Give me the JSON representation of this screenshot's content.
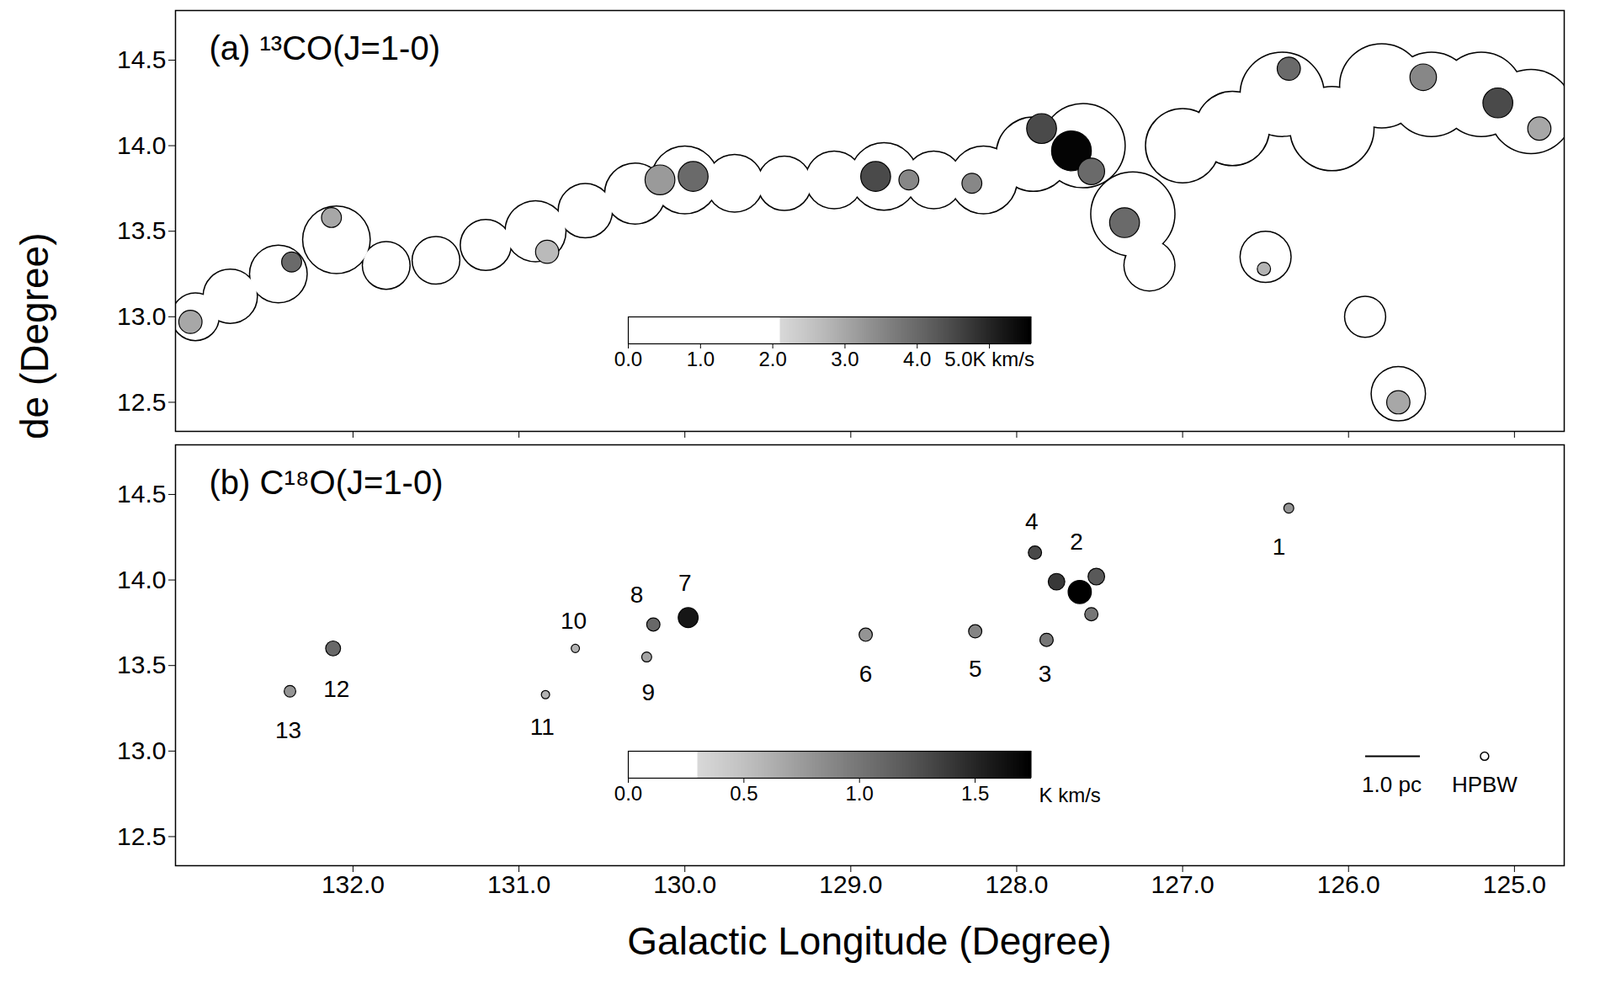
{
  "chart_data": [
    {
      "type": "map",
      "title": "(a) ¹³CO(J=1-0)",
      "ylabel": "Galactic Latitude (Degree)",
      "xlim": [
        133.07,
        124.7
      ],
      "ylim": [
        12.33,
        14.79
      ],
      "xticks": [
        {
          "value": 125,
          "label": "125.0"
        },
        {
          "value": 126,
          "label": "126.0"
        },
        {
          "value": 127,
          "label": "127.0"
        },
        {
          "value": 128,
          "label": "128.0"
        },
        {
          "value": 129,
          "label": "129.0"
        },
        {
          "value": 130,
          "label": "130.0"
        },
        {
          "value": 131,
          "label": "131.0"
        },
        {
          "value": 132,
          "label": "132.0"
        }
      ],
      "yticks": [
        12.5,
        {
          "value": 13,
          "label": "13.0"
        },
        13.5,
        {
          "value": 14,
          "label": "14.0"
        },
        14.5
      ],
      "tick_labels": "y",
      "colorbar": {
        "range": [
          0,
          5.57
        ],
        "white_below": 2.1,
        "ticks": [
          {
            "value": 0,
            "label": "0.0"
          },
          {
            "value": 1,
            "label": "1.0"
          },
          {
            "value": 2,
            "label": "2.0"
          },
          {
            "value": 3,
            "label": "3.0"
          },
          {
            "value": 4,
            "label": "4.0"
          },
          {
            "value": 5,
            "label": "5.0K km/s"
          }
        ]
      },
      "contour_regions": [
        {
          "x": 132.95,
          "y": 13.0,
          "value": 1.5,
          "size": 0.14
        },
        {
          "x": 132.74,
          "y": 13.12,
          "value": 1.5,
          "size": 0.16
        },
        {
          "x": 132.45,
          "y": 13.25,
          "value": 1.5,
          "size": 0.17
        },
        {
          "x": 132.1,
          "y": 13.45,
          "value": 1.5,
          "size": 0.2
        },
        {
          "x": 131.8,
          "y": 13.3,
          "value": 1.5,
          "size": 0.14
        },
        {
          "x": 131.5,
          "y": 13.33,
          "value": 1.5,
          "size": 0.14
        },
        {
          "x": 131.2,
          "y": 13.42,
          "value": 1.5,
          "size": 0.15
        },
        {
          "x": 130.9,
          "y": 13.5,
          "value": 1.5,
          "size": 0.18
        },
        {
          "x": 130.6,
          "y": 13.62,
          "value": 1.5,
          "size": 0.16
        },
        {
          "x": 130.3,
          "y": 13.72,
          "value": 1.5,
          "size": 0.18
        },
        {
          "x": 130.0,
          "y": 13.8,
          "value": 1.5,
          "size": 0.2
        },
        {
          "x": 129.7,
          "y": 13.78,
          "value": 1.5,
          "size": 0.17
        },
        {
          "x": 129.4,
          "y": 13.78,
          "value": 1.5,
          "size": 0.16
        },
        {
          "x": 129.1,
          "y": 13.8,
          "value": 1.5,
          "size": 0.17
        },
        {
          "x": 128.8,
          "y": 13.82,
          "value": 1.5,
          "size": 0.2
        },
        {
          "x": 128.5,
          "y": 13.8,
          "value": 1.5,
          "size": 0.17
        },
        {
          "x": 128.2,
          "y": 13.8,
          "value": 1.5,
          "size": 0.2
        },
        {
          "x": 127.9,
          "y": 13.95,
          "value": 1.5,
          "size": 0.22
        },
        {
          "x": 127.6,
          "y": 14.0,
          "value": 1.5,
          "size": 0.25
        },
        {
          "x": 127.3,
          "y": 13.6,
          "value": 1.5,
          "size": 0.25
        },
        {
          "x": 127.2,
          "y": 13.3,
          "value": 1.5,
          "size": 0.15
        },
        {
          "x": 127.0,
          "y": 14.0,
          "value": 1.5,
          "size": 0.22
        },
        {
          "x": 126.7,
          "y": 14.1,
          "value": 1.5,
          "size": 0.22
        },
        {
          "x": 126.4,
          "y": 14.3,
          "value": 1.5,
          "size": 0.25
        },
        {
          "x": 126.1,
          "y": 14.1,
          "value": 1.5,
          "size": 0.25
        },
        {
          "x": 125.8,
          "y": 14.35,
          "value": 1.5,
          "size": 0.25
        },
        {
          "x": 125.5,
          "y": 14.3,
          "value": 1.5,
          "size": 0.25
        },
        {
          "x": 125.2,
          "y": 14.3,
          "value": 1.5,
          "size": 0.25
        },
        {
          "x": 124.9,
          "y": 14.2,
          "value": 1.5,
          "size": 0.25
        },
        {
          "x": 126.5,
          "y": 13.35,
          "value": 1.5,
          "size": 0.15
        },
        {
          "x": 125.7,
          "y": 12.55,
          "value": 1.5,
          "size": 0.16
        },
        {
          "x": 125.9,
          "y": 13.0,
          "value": 1.5,
          "size": 0.12
        }
      ],
      "clumps": [
        {
          "x": 132.98,
          "y": 12.97,
          "value": 3.0,
          "size": 0.07
        },
        {
          "x": 132.37,
          "y": 13.32,
          "value": 4.0,
          "size": 0.06
        },
        {
          "x": 132.13,
          "y": 13.58,
          "value": 3.0,
          "size": 0.06
        },
        {
          "x": 130.83,
          "y": 13.38,
          "value": 2.7,
          "size": 0.07
        },
        {
          "x": 130.15,
          "y": 13.8,
          "value": 3.2,
          "size": 0.09
        },
        {
          "x": 129.95,
          "y": 13.82,
          "value": 4.0,
          "size": 0.09
        },
        {
          "x": 128.85,
          "y": 13.82,
          "value": 4.5,
          "size": 0.09
        },
        {
          "x": 128.65,
          "y": 13.8,
          "value": 3.5,
          "size": 0.06
        },
        {
          "x": 128.27,
          "y": 13.78,
          "value": 3.5,
          "size": 0.06
        },
        {
          "x": 127.85,
          "y": 14.1,
          "value": 4.5,
          "size": 0.09
        },
        {
          "x": 127.67,
          "y": 13.97,
          "value": 5.5,
          "size": 0.12
        },
        {
          "x": 127.55,
          "y": 13.85,
          "value": 4.0,
          "size": 0.08
        },
        {
          "x": 127.35,
          "y": 13.55,
          "value": 4.0,
          "size": 0.09
        },
        {
          "x": 126.51,
          "y": 13.28,
          "value": 2.8,
          "size": 0.04
        },
        {
          "x": 126.36,
          "y": 14.45,
          "value": 4.0,
          "size": 0.07
        },
        {
          "x": 125.55,
          "y": 14.4,
          "value": 3.5,
          "size": 0.08
        },
        {
          "x": 125.1,
          "y": 14.25,
          "value": 4.5,
          "size": 0.09
        },
        {
          "x": 124.85,
          "y": 14.1,
          "value": 3.0,
          "size": 0.07
        },
        {
          "x": 125.7,
          "y": 12.5,
          "value": 3.0,
          "size": 0.07
        }
      ]
    },
    {
      "type": "map",
      "title": "(b) C¹⁸O(J=1-0)",
      "xlabel": "Galactic Longitude (Degree)",
      "xlim": [
        133.07,
        124.7
      ],
      "ylim": [
        12.33,
        14.79
      ],
      "xticks": [
        {
          "value": 125,
          "label": "125.0"
        },
        {
          "value": 126,
          "label": "126.0"
        },
        {
          "value": 127,
          "label": "127.0"
        },
        {
          "value": 128,
          "label": "128.0"
        },
        {
          "value": 129,
          "label": "129.0"
        },
        {
          "value": 130,
          "label": "130.0"
        },
        {
          "value": 131,
          "label": "131.0"
        },
        {
          "value": 132,
          "label": "132.0"
        }
      ],
      "yticks": [
        12.5,
        {
          "value": 13,
          "label": "13.0"
        },
        13.5,
        {
          "value": 14,
          "label": "14.0"
        },
        14.5
      ],
      "colorbar": {
        "range": [
          0,
          1.74
        ],
        "white_below": 0.3,
        "label": "K km/s",
        "ticks": [
          {
            "value": 0,
            "label": "0.0"
          },
          0.5,
          {
            "value": 1,
            "label": "1.0"
          },
          1.5
        ]
      },
      "clumps": [
        {
          "x": 126.36,
          "y": 14.42,
          "value": 0.8,
          "size": 0.03,
          "label": "1",
          "label_x": 126.42,
          "label_y": 14.19
        },
        {
          "x": 127.62,
          "y": 13.93,
          "value": 1.8,
          "size": 0.07,
          "label": "2",
          "label_x": 127.64,
          "label_y": 14.22
        },
        {
          "x": 127.76,
          "y": 13.99,
          "value": 1.4,
          "size": 0.05
        },
        {
          "x": 127.52,
          "y": 14.02,
          "value": 1.2,
          "size": 0.05
        },
        {
          "x": 127.55,
          "y": 13.8,
          "value": 1.0,
          "size": 0.04
        },
        {
          "x": 127.82,
          "y": 13.65,
          "value": 1.0,
          "size": 0.04,
          "label": "3",
          "label_x": 127.83,
          "label_y": 13.45
        },
        {
          "x": 127.89,
          "y": 14.16,
          "value": 1.3,
          "size": 0.04,
          "label": "4",
          "label_x": 127.91,
          "label_y": 14.34
        },
        {
          "x": 128.25,
          "y": 13.7,
          "value": 0.9,
          "size": 0.04,
          "label": "5",
          "label_x": 128.25,
          "label_y": 13.48
        },
        {
          "x": 128.91,
          "y": 13.68,
          "value": 0.8,
          "size": 0.04,
          "label": "6",
          "label_x": 128.91,
          "label_y": 13.45
        },
        {
          "x": 129.98,
          "y": 13.78,
          "value": 1.6,
          "size": 0.06,
          "label": "7",
          "label_x": 130.0,
          "label_y": 13.98
        },
        {
          "x": 130.19,
          "y": 13.74,
          "value": 1.1,
          "size": 0.04,
          "label": "8",
          "label_x": 130.29,
          "label_y": 13.91
        },
        {
          "x": 130.23,
          "y": 13.55,
          "value": 0.7,
          "size": 0.03,
          "label": "9",
          "label_x": 130.22,
          "label_y": 13.34
        },
        {
          "x": 130.66,
          "y": 13.6,
          "value": 0.6,
          "size": 0.025,
          "label": "10",
          "label_x": 130.67,
          "label_y": 13.76
        },
        {
          "x": 130.84,
          "y": 13.33,
          "value": 0.6,
          "size": 0.025,
          "label": "11",
          "label_x": 130.86,
          "label_y": 13.14
        },
        {
          "x": 132.12,
          "y": 13.6,
          "value": 1.1,
          "size": 0.045,
          "label": "12",
          "label_x": 132.1,
          "label_y": 13.36
        },
        {
          "x": 132.38,
          "y": 13.35,
          "value": 0.8,
          "size": 0.035,
          "label": "13",
          "label_x": 132.39,
          "label_y": 13.12
        }
      ],
      "annotations": [
        {
          "type": "scale_bar",
          "x1": 125.9,
          "x2": 125.57,
          "y": 12.97,
          "label": "1.0 pc",
          "label_x": 125.74,
          "label_y": 12.8
        },
        {
          "type": "beam",
          "x": 125.18,
          "y": 12.97,
          "size": 0.025,
          "label": "HPBW",
          "label_x": 125.18,
          "label_y": 12.8
        }
      ]
    }
  ]
}
